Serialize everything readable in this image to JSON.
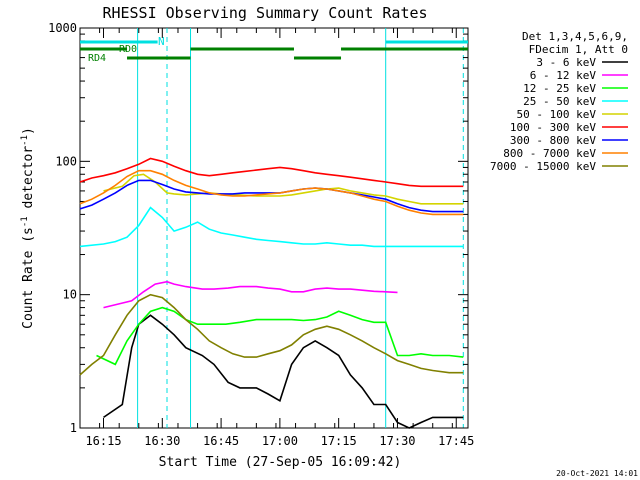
{
  "chart_data": {
    "type": "line",
    "title": "RHESSI Observing Summary Count Rates",
    "xlabel": "Start Time (27-Sep-05 16:09:42)",
    "ylabel_main": "Count Rate (s",
    "ylabel_sup1": "-1",
    "ylabel_mid": " detector",
    "ylabel_sup2": "-1",
    "ylabel_end": ")",
    "yscale": "log",
    "ylim": [
      1,
      1000
    ],
    "xlim_minutes": [
      16.15,
      17.8
    ],
    "x_tick_minutes": [
      16.25,
      16.5,
      16.75,
      17.0,
      17.25,
      17.5,
      17.75
    ],
    "x_tick_labels": [
      "16:15",
      "16:30",
      "16:45",
      "17:00",
      "17:15",
      "17:30",
      "17:45"
    ],
    "y_ticks": [
      1,
      10,
      100,
      1000
    ],
    "y_tick_labels": [
      "1",
      "10",
      "100",
      "1000"
    ],
    "legend_header": [
      "Det 1,3,4,5,6,9,",
      "FDecim 1, Att 0"
    ],
    "series": [
      {
        "name": "3 - 6 keV",
        "color": "#000000",
        "x": [
          16.25,
          16.33,
          16.37,
          16.4,
          16.45,
          16.5,
          16.55,
          16.6,
          16.67,
          16.72,
          16.78,
          16.83,
          16.9,
          16.95,
          17.0,
          17.05,
          17.1,
          17.15,
          17.2,
          17.25,
          17.3,
          17.35,
          17.4,
          17.45,
          17.5,
          17.55,
          17.6,
          17.65,
          17.72,
          17.78
        ],
        "y": [
          1.2,
          1.5,
          4,
          6,
          7,
          6,
          5,
          4,
          3.5,
          3,
          2.2,
          2,
          2,
          1.8,
          1.6,
          3,
          4,
          4.5,
          4,
          3.5,
          2.5,
          2,
          1.5,
          1.5,
          1.1,
          1.0,
          1.1,
          1.2,
          1.2,
          1.2
        ]
      },
      {
        "name": "6 - 12 keV",
        "color": "#ff00ff",
        "x": [
          16.25,
          16.37,
          16.42,
          16.47,
          16.52,
          16.55,
          16.6,
          16.67,
          16.72,
          16.78,
          16.83,
          16.9,
          16.95,
          17.0,
          17.05,
          17.1,
          17.15,
          17.2,
          17.25,
          17.3,
          17.35,
          17.4,
          17.45,
          17.5
        ],
        "y": [
          8,
          9,
          10.5,
          12,
          12.5,
          12,
          11.5,
          11,
          11,
          11.2,
          11.5,
          11.5,
          11.2,
          11.0,
          10.5,
          10.5,
          11.0,
          11.2,
          11.0,
          11.0,
          10.8,
          10.6,
          10.5,
          10.4
        ]
      },
      {
        "name": "12 - 25 keV",
        "color": "#00ff00",
        "x": [
          16.22,
          16.3,
          16.35,
          16.4,
          16.45,
          16.5,
          16.55,
          16.6,
          16.65,
          16.7,
          16.77,
          16.83,
          16.9,
          16.95,
          17.0,
          17.05,
          17.1,
          17.15,
          17.2,
          17.25,
          17.3,
          17.35,
          17.4,
          17.45,
          17.5,
          17.55,
          17.6,
          17.65,
          17.72,
          17.78
        ],
        "y": [
          3.5,
          3.0,
          4.5,
          6,
          7.5,
          8,
          7.5,
          6.5,
          6,
          6,
          6,
          6.2,
          6.5,
          6.5,
          6.5,
          6.5,
          6.4,
          6.5,
          6.8,
          7.5,
          7.0,
          6.5,
          6.2,
          6.2,
          3.5,
          3.5,
          3.6,
          3.5,
          3.5,
          3.4
        ]
      },
      {
        "name": "25 - 50 keV",
        "color": "#00ffff",
        "x": [
          16.15,
          16.25,
          16.3,
          16.35,
          16.4,
          16.45,
          16.5,
          16.55,
          16.6,
          16.65,
          16.7,
          16.75,
          16.8,
          16.85,
          16.9,
          16.95,
          17.0,
          17.05,
          17.1,
          17.15,
          17.2,
          17.25,
          17.3,
          17.35,
          17.4,
          17.45,
          17.5,
          17.55,
          17.6,
          17.65,
          17.72,
          17.78
        ],
        "y": [
          23,
          24,
          25,
          27,
          33,
          45,
          38,
          30,
          32,
          35,
          31,
          29,
          28,
          27,
          26,
          25.5,
          25,
          24.5,
          24,
          24,
          24.5,
          24,
          23.5,
          23.5,
          23,
          23,
          23,
          23,
          23,
          23,
          23,
          23
        ]
      },
      {
        "name": "50 - 100 keV",
        "color": "#d4d400",
        "x": [
          16.25,
          16.33,
          16.38,
          16.42,
          16.47,
          16.52,
          16.55,
          16.6,
          16.65,
          16.7,
          16.75,
          16.83,
          16.9,
          16.95,
          17.0,
          17.05,
          17.1,
          17.15,
          17.2,
          17.25,
          17.3,
          17.35,
          17.4,
          17.45,
          17.5,
          17.55,
          17.6,
          17.65,
          17.72,
          17.78
        ],
        "y": [
          60,
          65,
          78,
          80,
          70,
          58,
          57,
          56,
          57,
          58,
          57,
          56,
          55,
          55,
          55,
          56,
          58,
          60,
          62,
          63,
          60,
          58,
          56,
          55,
          52,
          50,
          48,
          48,
          48,
          48
        ]
      },
      {
        "name": "100 - 300 keV",
        "color": "#ff0000",
        "x": [
          16.15,
          16.2,
          16.25,
          16.3,
          16.35,
          16.4,
          16.45,
          16.5,
          16.55,
          16.6,
          16.65,
          16.7,
          16.75,
          16.8,
          16.85,
          16.9,
          16.95,
          17.0,
          17.05,
          17.1,
          17.15,
          17.2,
          17.25,
          17.3,
          17.35,
          17.4,
          17.45,
          17.5,
          17.55,
          17.6,
          17.65,
          17.72,
          17.78
        ],
        "y": [
          70,
          75,
          78,
          82,
          88,
          95,
          105,
          100,
          92,
          85,
          80,
          78,
          80,
          82,
          84,
          86,
          88,
          90,
          88,
          85,
          82,
          80,
          78,
          76,
          74,
          72,
          70,
          68,
          66,
          65,
          65,
          65,
          65
        ]
      },
      {
        "name": "300 - 800 keV",
        "color": "#0000ff",
        "x": [
          16.15,
          16.2,
          16.25,
          16.3,
          16.35,
          16.4,
          16.45,
          16.5,
          16.55,
          16.6,
          16.65,
          16.7,
          16.75,
          16.8,
          16.85,
          16.9,
          16.95,
          17.0,
          17.05,
          17.1,
          17.15,
          17.2,
          17.25,
          17.3,
          17.35,
          17.4,
          17.45,
          17.5,
          17.55,
          17.6,
          17.65,
          17.72,
          17.78
        ],
        "y": [
          44,
          47,
          52,
          58,
          66,
          72,
          72,
          67,
          62,
          59,
          58,
          57,
          57,
          57,
          58,
          58,
          58,
          58,
          60,
          62,
          63,
          62,
          60,
          58,
          56,
          54,
          52,
          48,
          45,
          43,
          42,
          42,
          42
        ]
      },
      {
        "name": "800 - 7000 keV",
        "color": "#ff8000",
        "x": [
          16.15,
          16.2,
          16.25,
          16.3,
          16.35,
          16.4,
          16.45,
          16.5,
          16.55,
          16.6,
          16.65,
          16.7,
          16.75,
          16.8,
          16.85,
          16.9,
          16.95,
          17.0,
          17.05,
          17.1,
          17.15,
          17.2,
          17.25,
          17.3,
          17.35,
          17.4,
          17.45,
          17.5,
          17.55,
          17.6,
          17.65,
          17.72,
          17.78
        ],
        "y": [
          48,
          52,
          58,
          66,
          77,
          85,
          85,
          80,
          72,
          66,
          62,
          58,
          56,
          55,
          55,
          56,
          57,
          58,
          60,
          62,
          63,
          62,
          60,
          58,
          55,
          52,
          50,
          46,
          43,
          41,
          40,
          40,
          40
        ]
      },
      {
        "name": "7000 - 15000 keV",
        "color": "#808000",
        "x": [
          16.15,
          16.2,
          16.25,
          16.3,
          16.35,
          16.4,
          16.45,
          16.5,
          16.55,
          16.6,
          16.65,
          16.7,
          16.75,
          16.8,
          16.85,
          16.9,
          16.95,
          17.0,
          17.05,
          17.1,
          17.15,
          17.2,
          17.25,
          17.3,
          17.35,
          17.4,
          17.45,
          17.5,
          17.55,
          17.6,
          17.65,
          17.72,
          17.78
        ],
        "y": [
          2.5,
          3.0,
          3.5,
          5,
          7,
          9,
          10,
          9.5,
          8,
          6.5,
          5.5,
          4.5,
          4.0,
          3.6,
          3.4,
          3.4,
          3.6,
          3.8,
          4.2,
          5.0,
          5.5,
          5.8,
          5.5,
          5.0,
          4.5,
          4.0,
          3.6,
          3.2,
          3.0,
          2.8,
          2.7,
          2.6,
          2.6
        ]
      }
    ],
    "annotations": {
      "n_label": "N",
      "rd0_label": "RD0",
      "rd4_label": "RD4",
      "footer_date": "20-Oct-2021 14:01"
    }
  }
}
